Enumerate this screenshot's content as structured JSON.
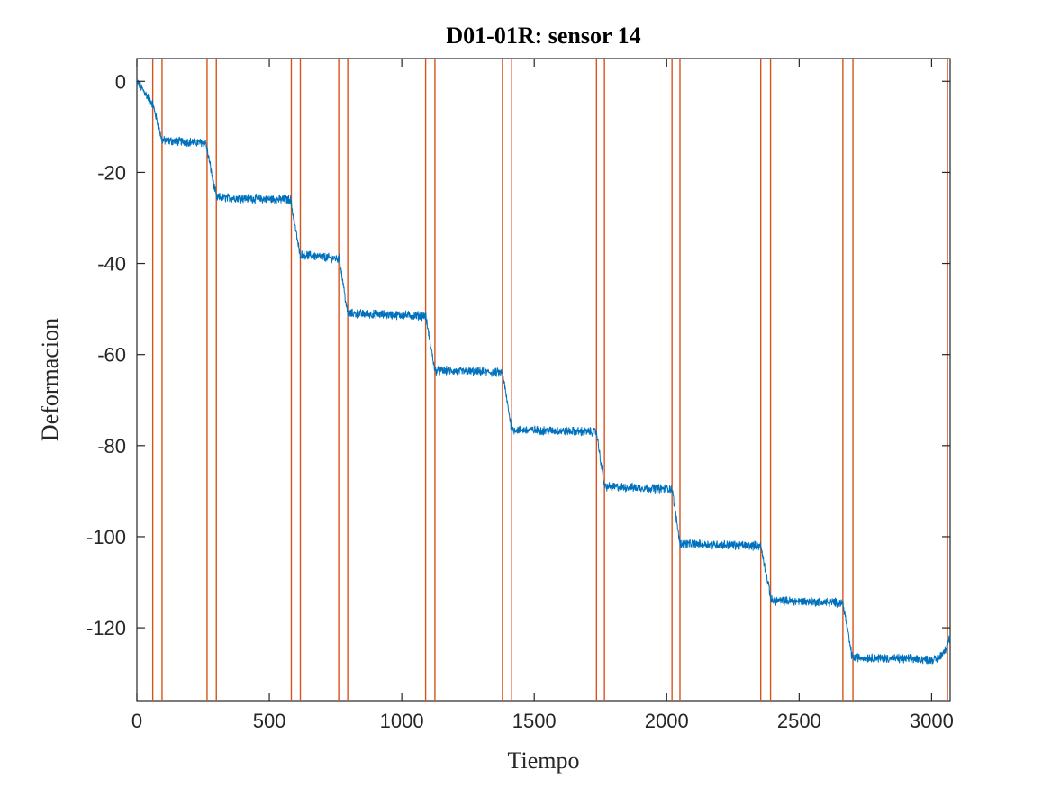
{
  "chart_data": {
    "type": "line",
    "title": "D01-01R: sensor 14",
    "xlabel": "Tiempo",
    "ylabel": "Deformacion",
    "xlim": [
      0,
      3070
    ],
    "ylim": [
      -136,
      5
    ],
    "xticks": [
      0,
      500,
      1000,
      1500,
      2000,
      2500,
      3000
    ],
    "xtick_labels": [
      "0",
      "500",
      "1000",
      "1500",
      "2000",
      "2500",
      "3000"
    ],
    "yticks": [
      0,
      -20,
      -40,
      -60,
      -80,
      -100,
      -120
    ],
    "ytick_labels": [
      "0",
      "-20",
      "-40",
      "-60",
      "-80",
      "-100",
      "-120"
    ],
    "grid": false,
    "series": [
      {
        "color": "#0072BD",
        "x": [
          0,
          60,
          95,
          260,
          300,
          580,
          615,
          765,
          795,
          1090,
          1125,
          1380,
          1415,
          1735,
          1765,
          2020,
          2050,
          2355,
          2395,
          2665,
          2700,
          3020,
          3050,
          3070
        ],
        "y": [
          0,
          -5,
          -13,
          -13.5,
          -25.5,
          -26,
          -38,
          -39,
          -51,
          -51.5,
          -63.5,
          -64,
          -76.5,
          -77,
          -89,
          -89.5,
          -101.5,
          -102,
          -114,
          -114.5,
          -126.5,
          -127,
          -125,
          -122
        ]
      }
    ],
    "vlines": {
      "color": "#D95319",
      "x": [
        60,
        95,
        265,
        300,
        583,
        617,
        762,
        796,
        1090,
        1125,
        1380,
        1415,
        1735,
        1765,
        2020,
        2050,
        2355,
        2392,
        2665,
        2703,
        3060
      ]
    }
  }
}
